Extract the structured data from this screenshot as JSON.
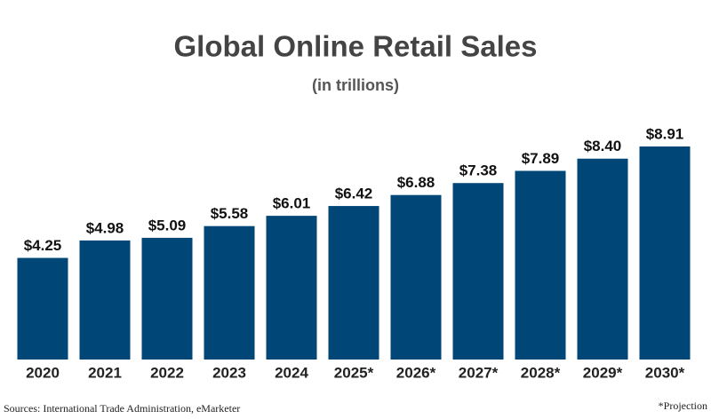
{
  "chart_data": {
    "type": "bar",
    "title": "Global Online Retail Sales",
    "subtitle": "(in trillions)",
    "categories": [
      "2020",
      "2021",
      "2022",
      "2023",
      "2024",
      "2025*",
      "2026*",
      "2027*",
      "2028*",
      "2029*",
      "2030*"
    ],
    "values": [
      4.25,
      4.98,
      5.09,
      5.58,
      6.01,
      6.42,
      6.88,
      7.38,
      7.89,
      8.4,
      8.91
    ],
    "value_labels": [
      "$4.25",
      "$4.98",
      "$5.09",
      "$5.58",
      "$6.01",
      "$6.42",
      "$6.88",
      "$7.38",
      "$7.89",
      "$8.40",
      "$8.91"
    ],
    "color": "#004677",
    "source": "Sources: International Trade Administration, eMarketer",
    "note": "*Projection"
  }
}
